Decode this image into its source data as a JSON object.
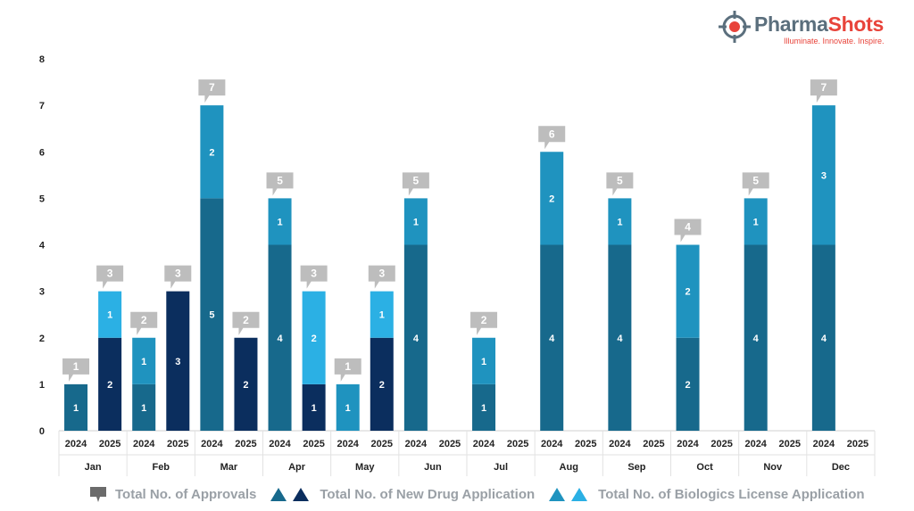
{
  "brand": {
    "name_part1": "Pharma",
    "name_part2": "Shots",
    "tagline": "Illuminate. Innovate. Inspire."
  },
  "colors": {
    "nda_2024": "#17698c",
    "nda_2025": "#0b2e5e",
    "bla_2024": "#1f93bf",
    "bla_2025": "#2bb0e4",
    "total_callout": "#bdbdbd",
    "axis_text": "#222222",
    "legend_text": "#9aa0a6"
  },
  "legend": {
    "total": "Total No. of Approvals",
    "nda": "Total No. of New Drug Application",
    "bla": "Total No. of Biologics License Application"
  },
  "chart_data": {
    "type": "bar",
    "stacked": true,
    "grid": false,
    "ylim": [
      0,
      8
    ],
    "yticks": [
      0,
      1,
      2,
      3,
      4,
      5,
      6,
      7,
      8
    ],
    "months": [
      "Jan",
      "Feb",
      "Mar",
      "Apr",
      "May",
      "Jun",
      "Jul",
      "Aug",
      "Sep",
      "Oct",
      "Nov",
      "Dec"
    ],
    "years": [
      "2024",
      "2025"
    ],
    "series": [
      {
        "name": "Total No. of New Drug Application",
        "values_2024": [
          1,
          1,
          5,
          4,
          0,
          4,
          1,
          4,
          4,
          2,
          4,
          4
        ],
        "values_2025": [
          2,
          3,
          2,
          1,
          2,
          0,
          0,
          0,
          0,
          0,
          0,
          0
        ]
      },
      {
        "name": "Total No. of Biologics License Application",
        "values_2024": [
          0,
          1,
          2,
          1,
          1,
          1,
          1,
          2,
          1,
          2,
          1,
          3
        ],
        "values_2025": [
          1,
          0,
          0,
          2,
          1,
          0,
          0,
          0,
          0,
          0,
          0,
          0
        ]
      }
    ],
    "totals_2024": [
      1,
      2,
      7,
      5,
      1,
      5,
      2,
      6,
      5,
      4,
      5,
      7
    ],
    "totals_2025": [
      3,
      3,
      2,
      3,
      3,
      null,
      null,
      null,
      null,
      null,
      null,
      null
    ],
    "legend_position": "bottom"
  }
}
